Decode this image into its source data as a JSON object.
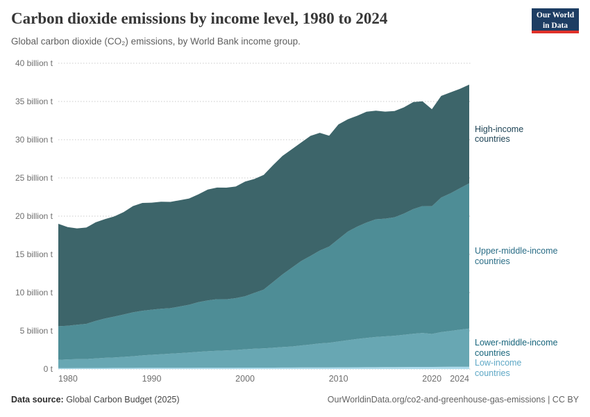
{
  "header": {
    "title": "Carbon dioxide emissions by income level, 1980 to 2024",
    "subtitle": "Global carbon dioxide (CO₂) emissions, by World Bank income group.",
    "logo": {
      "line1": "Our World",
      "line2": "in Data"
    }
  },
  "footer": {
    "source_label": "Data source:",
    "source_text": " Global Carbon Budget (2025)",
    "link_text": "OurWorldinData.org/co2-and-greenhouse-gas-emissions | CC BY"
  },
  "chart_data": {
    "type": "area",
    "stacked": true,
    "title": "Carbon dioxide emissions by income level, 1980 to 2024",
    "xlabel": "",
    "ylabel": "",
    "unit": "billion t",
    "xlim": [
      1980,
      2024
    ],
    "ylim": [
      0,
      40
    ],
    "grid": "horizontal-dotted",
    "legend_position": "right-margin",
    "x_ticks": [
      1980,
      1990,
      2000,
      2010,
      2020,
      2024
    ],
    "y_ticks": [
      {
        "value": 0,
        "label": "0 t"
      },
      {
        "value": 5,
        "label": "5 billion t"
      },
      {
        "value": 10,
        "label": "10 billion t"
      },
      {
        "value": 15,
        "label": "15 billion t"
      },
      {
        "value": 20,
        "label": "20 billion t"
      },
      {
        "value": 25,
        "label": "25 billion t"
      },
      {
        "value": 30,
        "label": "30 billion t"
      },
      {
        "value": 35,
        "label": "35 billion t"
      },
      {
        "value": 40,
        "label": "40 billion t"
      }
    ],
    "x": [
      1980,
      1981,
      1982,
      1983,
      1984,
      1985,
      1986,
      1987,
      1988,
      1989,
      1990,
      1991,
      1992,
      1993,
      1994,
      1995,
      1996,
      1997,
      1998,
      1999,
      2000,
      2001,
      2002,
      2003,
      2004,
      2005,
      2006,
      2007,
      2008,
      2009,
      2010,
      2011,
      2012,
      2013,
      2014,
      2015,
      2016,
      2017,
      2018,
      2019,
      2020,
      2021,
      2022,
      2023,
      2024
    ],
    "series": [
      {
        "name": "low-income",
        "label": "Low-income countries",
        "label_lines": [
          "Low-income",
          "countries"
        ],
        "color": "#aedced",
        "label_color": "#5fa8c6",
        "values": [
          0.12,
          0.12,
          0.13,
          0.13,
          0.14,
          0.14,
          0.15,
          0.15,
          0.15,
          0.16,
          0.16,
          0.16,
          0.16,
          0.16,
          0.16,
          0.17,
          0.17,
          0.17,
          0.17,
          0.17,
          0.18,
          0.18,
          0.18,
          0.18,
          0.19,
          0.19,
          0.2,
          0.2,
          0.21,
          0.21,
          0.22,
          0.22,
          0.23,
          0.24,
          0.24,
          0.25,
          0.25,
          0.26,
          0.27,
          0.27,
          0.27,
          0.28,
          0.29,
          0.3,
          0.3
        ]
      },
      {
        "name": "lower-middle-income",
        "label": "Lower-middle-income countries",
        "label_lines": [
          "Lower-middle-income",
          "countries"
        ],
        "color": "#68a7b3",
        "label_color": "#16647b",
        "values": [
          1.08,
          1.14,
          1.17,
          1.18,
          1.25,
          1.32,
          1.36,
          1.44,
          1.52,
          1.62,
          1.7,
          1.78,
          1.85,
          1.92,
          2.0,
          2.08,
          2.16,
          2.22,
          2.26,
          2.32,
          2.4,
          2.48,
          2.52,
          2.6,
          2.68,
          2.76,
          2.88,
          3.0,
          3.14,
          3.22,
          3.38,
          3.55,
          3.7,
          3.82,
          3.95,
          4.02,
          4.1,
          4.22,
          4.35,
          4.45,
          4.32,
          4.55,
          4.7,
          4.85,
          5.0
        ]
      },
      {
        "name": "upper-middle-income",
        "label": "Upper-middle-income countries",
        "label_lines": [
          "Upper-middle-income",
          "countries"
        ],
        "color": "#4e8d96",
        "label_color": "#2a6d86",
        "values": [
          4.4,
          4.4,
          4.5,
          4.6,
          4.9,
          5.15,
          5.35,
          5.55,
          5.75,
          5.85,
          5.9,
          5.95,
          5.95,
          6.1,
          6.25,
          6.5,
          6.65,
          6.75,
          6.7,
          6.78,
          6.95,
          7.3,
          7.7,
          8.6,
          9.5,
          10.3,
          11.05,
          11.6,
          12.15,
          12.6,
          13.4,
          14.2,
          14.7,
          15.1,
          15.4,
          15.4,
          15.5,
          15.85,
          16.3,
          16.6,
          16.7,
          17.6,
          18.0,
          18.5,
          19.0
        ]
      },
      {
        "name": "high-income",
        "label": "High-income countries",
        "label_lines": [
          "High-income",
          "countries"
        ],
        "color": "#3d656a",
        "label_color": "#1d4355",
        "values": [
          13.4,
          12.9,
          12.6,
          12.6,
          12.9,
          13.0,
          13.1,
          13.4,
          13.9,
          14.1,
          14.0,
          14.0,
          13.9,
          13.9,
          13.9,
          14.1,
          14.5,
          14.6,
          14.6,
          14.6,
          15.0,
          14.9,
          15.0,
          15.3,
          15.5,
          15.5,
          15.5,
          15.7,
          15.4,
          14.5,
          15.0,
          14.7,
          14.5,
          14.5,
          14.2,
          14.0,
          13.9,
          13.9,
          14.0,
          13.7,
          12.7,
          13.3,
          13.2,
          13.0,
          12.9
        ]
      }
    ],
    "colors": {
      "axis_text": "#6e6e6e",
      "gridline": "#c9c9c9",
      "logo_bg": "#1d3d63",
      "logo_red": "#e0312a"
    }
  }
}
